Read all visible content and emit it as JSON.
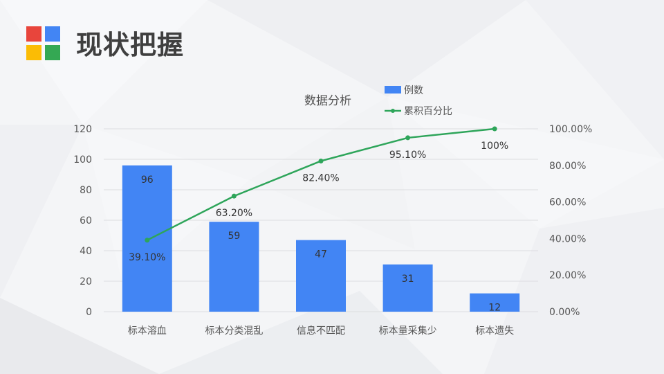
{
  "page": {
    "title": "现状把握"
  },
  "logo": {
    "colors": [
      "#e8453c",
      "#4285f4",
      "#fbbc05",
      "#34a853"
    ]
  },
  "colors": {
    "bar": "#4285f4",
    "line": "#2ea55a",
    "grid": "#dcdde0",
    "text": "#555555"
  },
  "chart_data": {
    "type": "bar",
    "title": "数据分析",
    "categories": [
      "标本溶血",
      "标本分类混乱",
      "信息不匹配",
      "标本量采集少",
      "标本遗失"
    ],
    "series": [
      {
        "name": "例数",
        "type": "bar",
        "axis": "left",
        "values": [
          96,
          59,
          47,
          31,
          12
        ],
        "labels": [
          "96",
          "59",
          "47",
          "31",
          "12"
        ]
      },
      {
        "name": "累积百分比",
        "type": "line",
        "axis": "right",
        "values": [
          39.1,
          63.2,
          82.4,
          95.1,
          100
        ],
        "labels": [
          "39.10%",
          "63.20%",
          "82.40%",
          "95.10%",
          "100%"
        ]
      }
    ],
    "y_left": {
      "ylim": [
        0,
        120
      ],
      "ticks": [
        "0",
        "20",
        "40",
        "60",
        "80",
        "100",
        "120"
      ]
    },
    "y_right": {
      "ylim": [
        0,
        100
      ],
      "ticks": [
        "0.00%",
        "20.00%",
        "40.00%",
        "60.00%",
        "80.00%",
        "100.00%"
      ]
    },
    "grid": true,
    "legend": "top-right"
  }
}
